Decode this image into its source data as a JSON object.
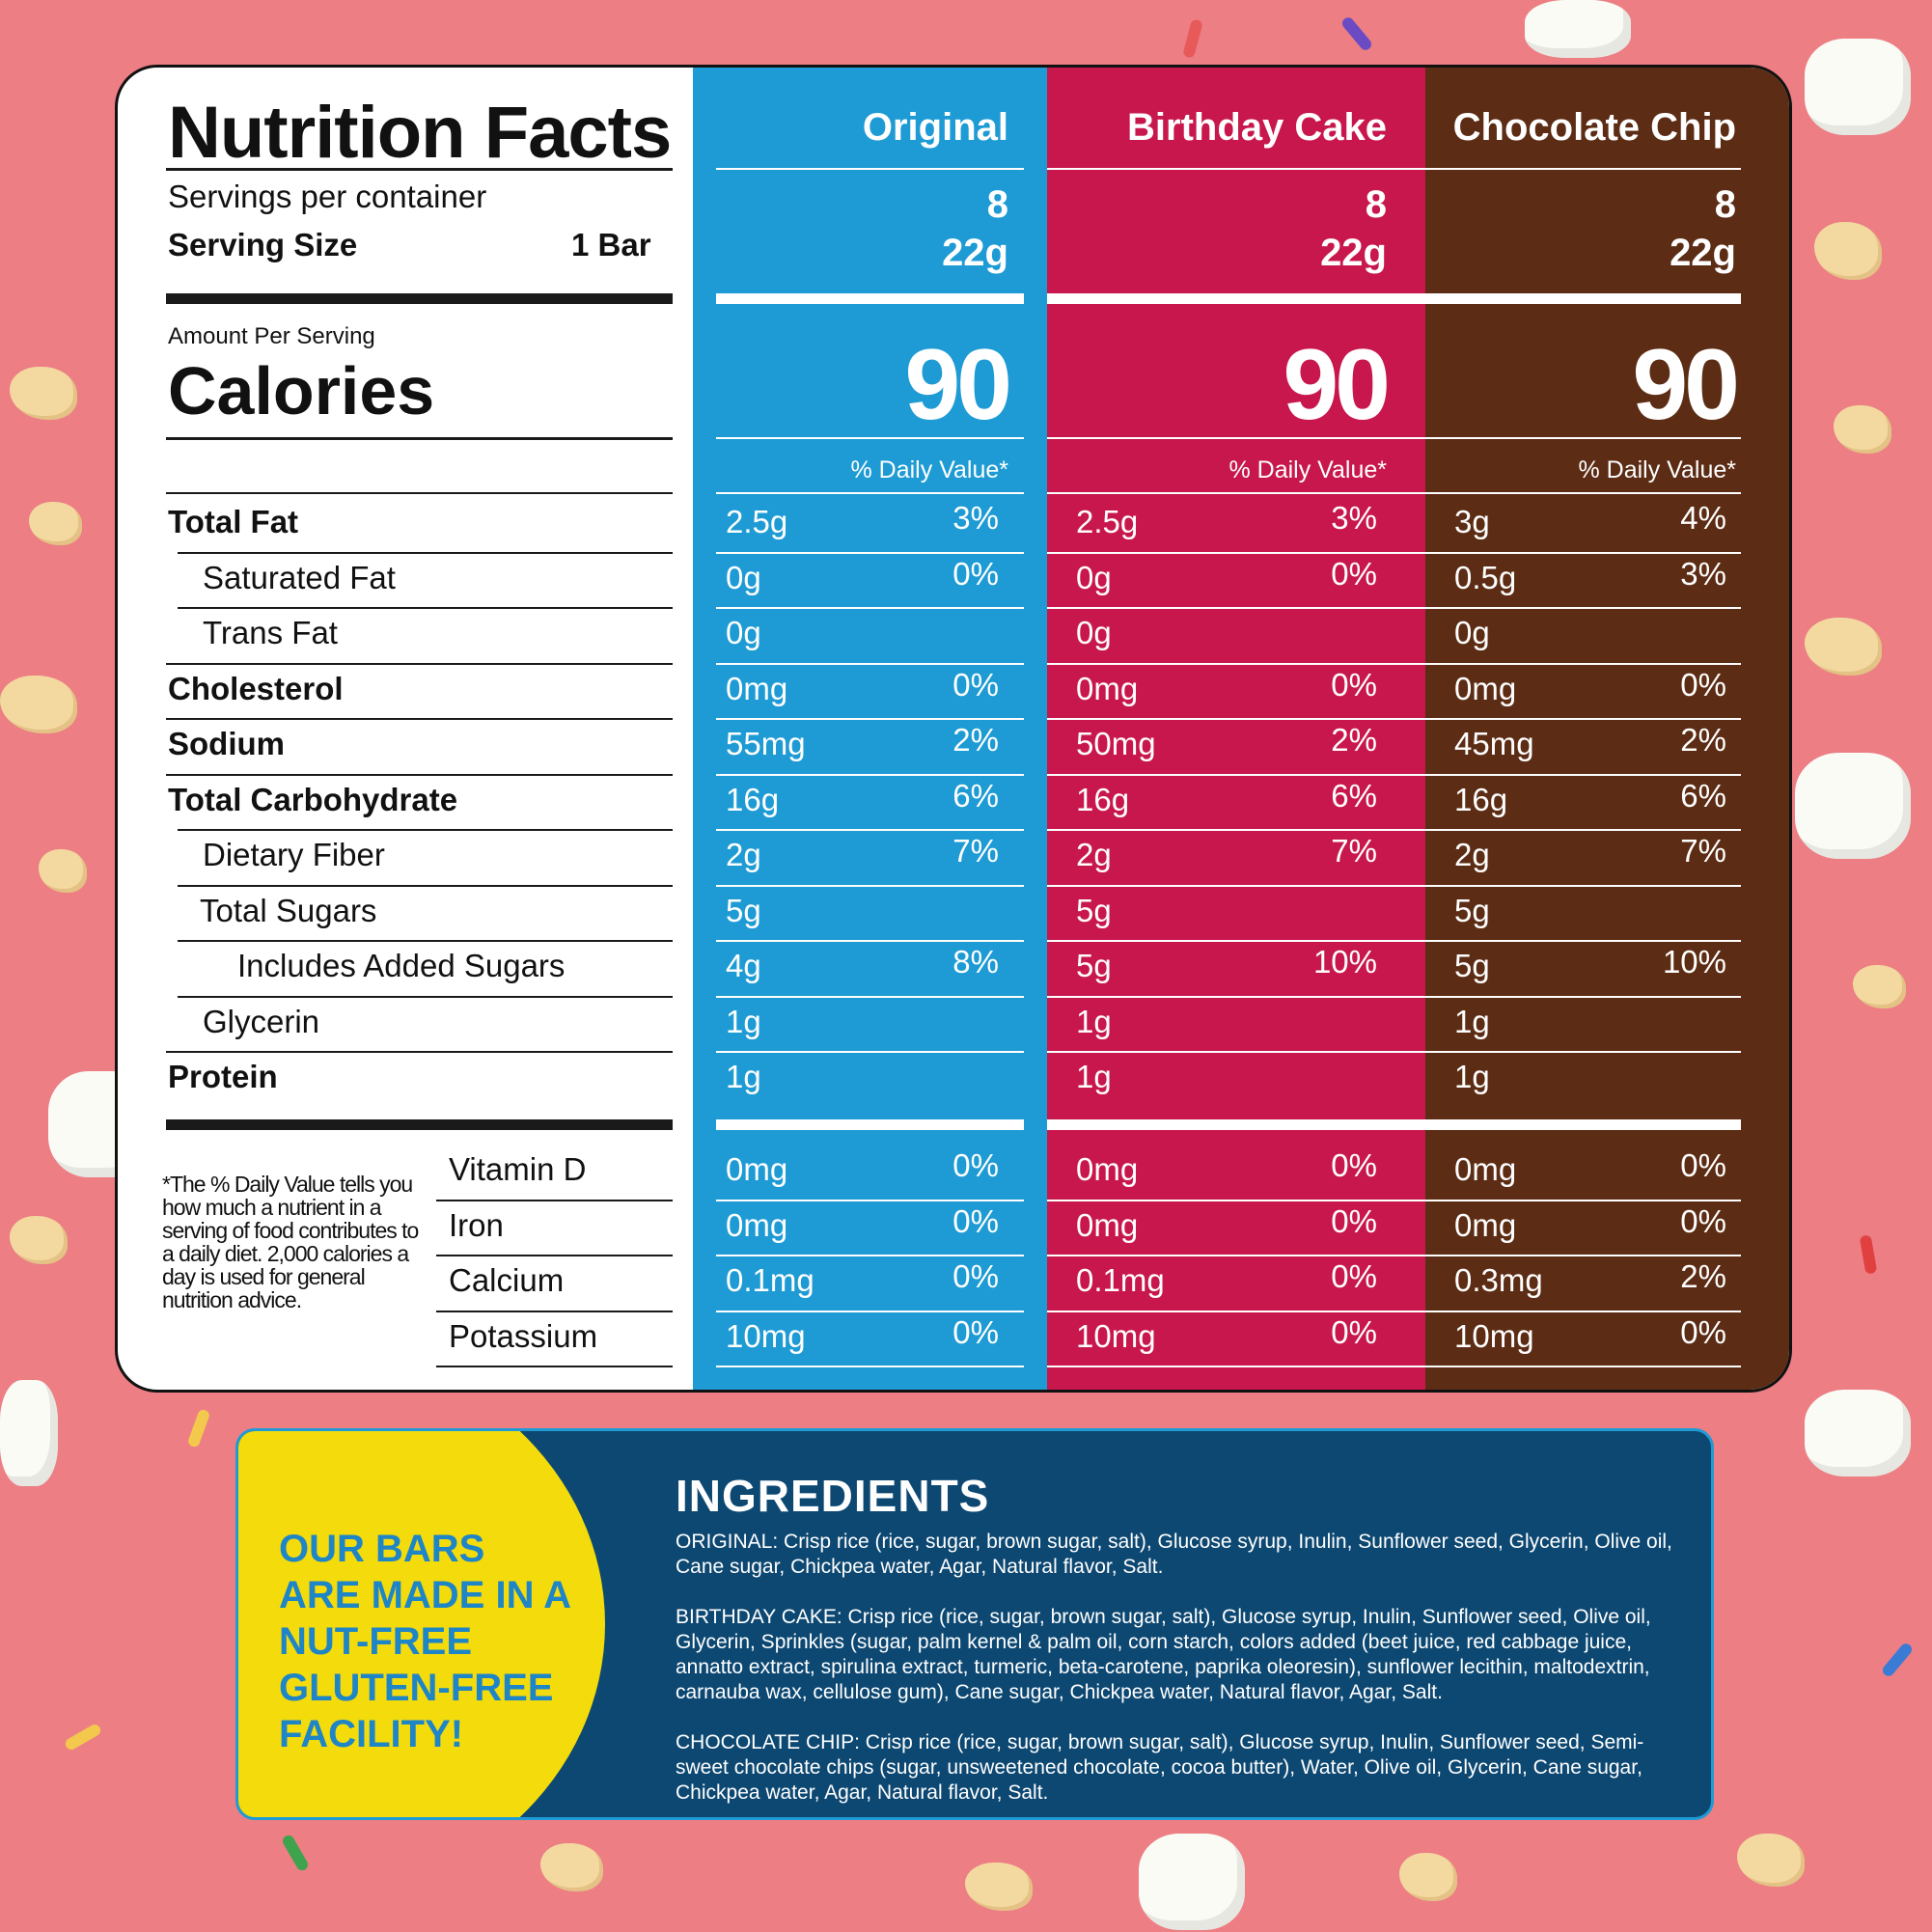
{
  "panel": {
    "title": "Nutrition Facts",
    "servings_label": "Servings per container",
    "serving_size_label": "Serving Size",
    "serving_size_value": "1 Bar",
    "amount_label": "Amount Per Serving",
    "calories_label": "Calories",
    "footnote": "*The % Daily Value tells you how much a nutrient in a serving of food contributes to a daily diet. 2,000 calories a day is used for general nutrition advice."
  },
  "nutrients": [
    {
      "label": "Total Fat",
      "bold": true
    },
    {
      "label": "Saturated Fat",
      "bold": false
    },
    {
      "label": "Trans Fat",
      "bold": false
    },
    {
      "label": "Cholesterol",
      "bold": true
    },
    {
      "label": "Sodium",
      "bold": true
    },
    {
      "label": "Total Carbohydrate",
      "bold": true
    },
    {
      "label": "Dietary Fiber",
      "bold": false
    },
    {
      "label": "Total Sugars",
      "bold": false
    },
    {
      "label": "Includes Added Sugars",
      "bold": false
    },
    {
      "label": "Glycerin",
      "bold": false
    },
    {
      "label": "Protein",
      "bold": true
    }
  ],
  "vitamins": [
    "Vitamin D",
    "Iron",
    "Calcium",
    "Potassium"
  ],
  "flavors": [
    {
      "name": "Original",
      "color": "#1e9bd4",
      "servings": "8",
      "serving_size": "22g",
      "calories": "90",
      "dv_label": "% Daily Value*",
      "values": [
        [
          "2.5g",
          "3%"
        ],
        [
          "0g",
          "0%"
        ],
        [
          "0g",
          ""
        ],
        [
          "0mg",
          "0%"
        ],
        [
          "55mg",
          "2%"
        ],
        [
          "16g",
          "6%"
        ],
        [
          "2g",
          "7%"
        ],
        [
          "5g",
          ""
        ],
        [
          "4g",
          "8%"
        ],
        [
          "1g",
          ""
        ],
        [
          "1g",
          ""
        ]
      ],
      "vitamins": [
        [
          "0mg",
          "0%"
        ],
        [
          "0mg",
          "0%"
        ],
        [
          "0.1mg",
          "0%"
        ],
        [
          "10mg",
          "0%"
        ]
      ]
    },
    {
      "name": "Birthday Cake",
      "color": "#c8174c",
      "servings": "8",
      "serving_size": "22g",
      "calories": "90",
      "dv_label": "% Daily Value*",
      "values": [
        [
          "2.5g",
          "3%"
        ],
        [
          "0g",
          "0%"
        ],
        [
          "0g",
          ""
        ],
        [
          "0mg",
          "0%"
        ],
        [
          "50mg",
          "2%"
        ],
        [
          "16g",
          "6%"
        ],
        [
          "2g",
          "7%"
        ],
        [
          "5g",
          ""
        ],
        [
          "5g",
          "10%"
        ],
        [
          "1g",
          ""
        ],
        [
          "1g",
          ""
        ]
      ],
      "vitamins": [
        [
          "0mg",
          "0%"
        ],
        [
          "0mg",
          "0%"
        ],
        [
          "0.1mg",
          "0%"
        ],
        [
          "10mg",
          "0%"
        ]
      ]
    },
    {
      "name": "Chocolate Chip",
      "color": "#5c2c14",
      "servings": "8",
      "serving_size": "22g",
      "calories": "90",
      "dv_label": "% Daily Value*",
      "values": [
        [
          "3g",
          "4%"
        ],
        [
          "0.5g",
          "3%"
        ],
        [
          "0g",
          ""
        ],
        [
          "0mg",
          "0%"
        ],
        [
          "45mg",
          "2%"
        ],
        [
          "16g",
          "6%"
        ],
        [
          "2g",
          "7%"
        ],
        [
          "5g",
          ""
        ],
        [
          "5g",
          "10%"
        ],
        [
          "1g",
          ""
        ],
        [
          "1g",
          ""
        ]
      ],
      "vitamins": [
        [
          "0mg",
          "0%"
        ],
        [
          "0mg",
          "0%"
        ],
        [
          "0.3mg",
          "2%"
        ],
        [
          "10mg",
          "0%"
        ]
      ]
    }
  ],
  "ingredients": {
    "badge_lines": [
      "OUR BARS",
      "ARE MADE IN A",
      "NUT-FREE",
      "GLUTEN-FREE",
      "FACILITY!"
    ],
    "title": "INGREDIENTS",
    "original": "ORIGINAL: Crisp rice (rice, sugar, brown sugar, salt), Glucose syrup, Inulin, Sunflower seed, Glycerin, Olive oil, Cane sugar, Chickpea water, Agar, Natural flavor, Salt.",
    "birthday_cake": "BIRTHDAY CAKE: Crisp rice (rice, sugar, brown sugar, salt), Glucose syrup, Inulin, Sunflower seed, Olive oil, Glycerin, Sprinkles (sugar, palm kernel & palm oil, corn starch, colors added (beet juice, red cabbage juice, annatto extract, spirulina extract, turmeric, beta-carotene, paprika oleoresin), sunflower lecithin, maltodextrin, carnauba wax, cellulose gum), Cane sugar, Chickpea water, Natural flavor, Agar, Salt.",
    "chocolate_chip": "CHOCOLATE CHIP: Crisp rice (rice, sugar, brown sugar, salt), Glucose syrup, Inulin, Sunflower seed, Semi-sweet chocolate chips (sugar, unsweetened chocolate, cocoa butter), Water, Olive oil, Glycerin, Cane sugar, Chickpea water, Agar, Natural flavor, Salt."
  }
}
